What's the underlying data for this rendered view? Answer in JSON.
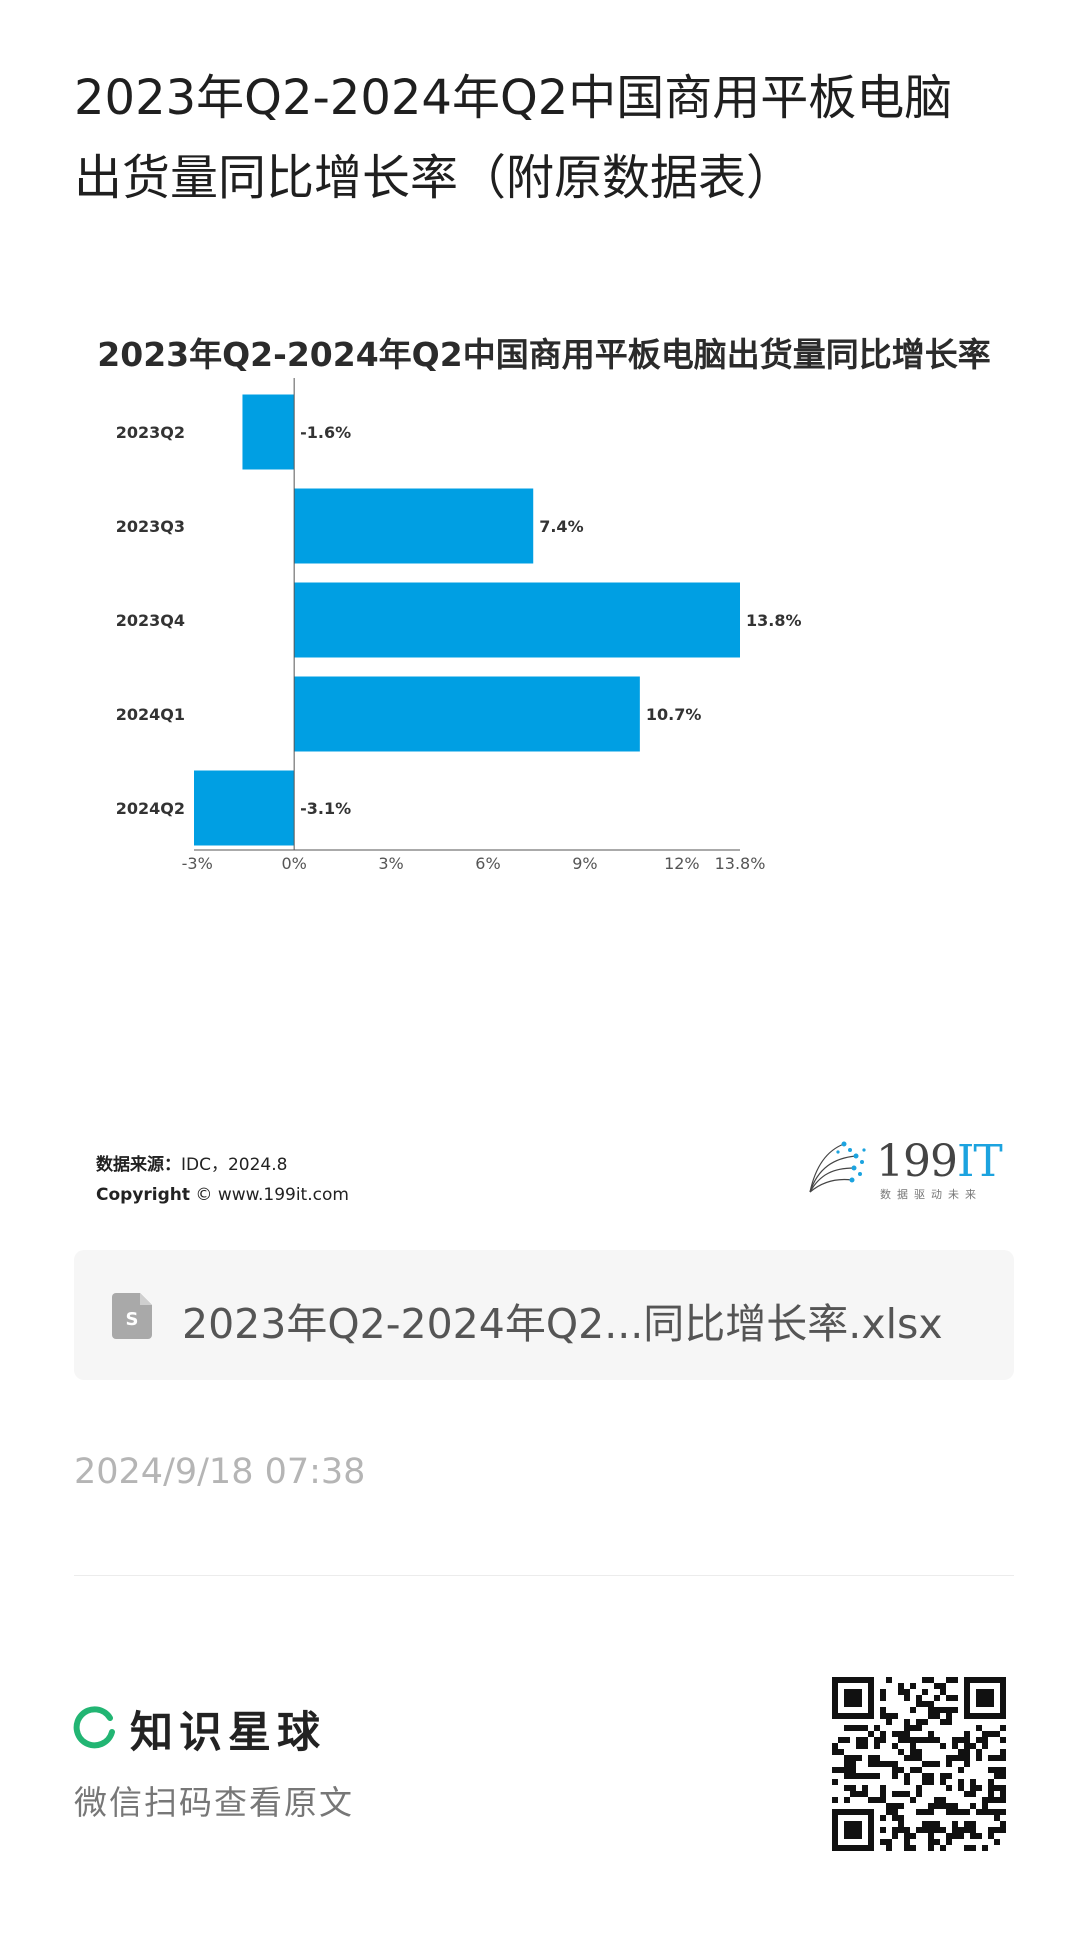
{
  "post": {
    "title": "2023年Q2-2024年Q2中国商用平板电脑\n出货量同比增长率（附原数据表）"
  },
  "chart_data": {
    "type": "bar",
    "orientation": "horizontal",
    "title": "2023年Q2-2024年Q2中国商用平板电脑出货量同比增长率",
    "categories": [
      "2023Q2",
      "2023Q3",
      "2023Q4",
      "2024Q1",
      "2024Q2"
    ],
    "values": [
      -1.6,
      7.4,
      13.8,
      10.7,
      -3.1
    ],
    "value_labels": [
      "-1.6%",
      "7.4%",
      "13.8%",
      "10.7%",
      "-3.1%"
    ],
    "x_ticks": [
      "-3%",
      "0%",
      "3%",
      "6%",
      "9%",
      "12%",
      "13.8%"
    ],
    "x_tick_values": [
      -3,
      0,
      3,
      6,
      9,
      12,
      13.8
    ],
    "xlim": [
      -3.1,
      13.8
    ],
    "bar_color": "#009fe3",
    "grid": false,
    "legend": "none"
  },
  "footer": {
    "source_label": "数据来源：",
    "source_value": "IDC，2024.8",
    "copyright_label": "Copyright",
    "copyright_value": " © www.199it.com"
  },
  "logo": {
    "number": "199",
    "it": "IT",
    "tagline": "数据驱动未来"
  },
  "attachment": {
    "file_name": "2023年Q2-2024年Q2...同比增长率.xlsx",
    "icon": "spreadsheet-file-icon"
  },
  "timestamp": "2024/9/18 07:38",
  "brand": {
    "name": "知识星球",
    "scan_text": "微信扫码查看原文",
    "accent": "#22b573"
  }
}
